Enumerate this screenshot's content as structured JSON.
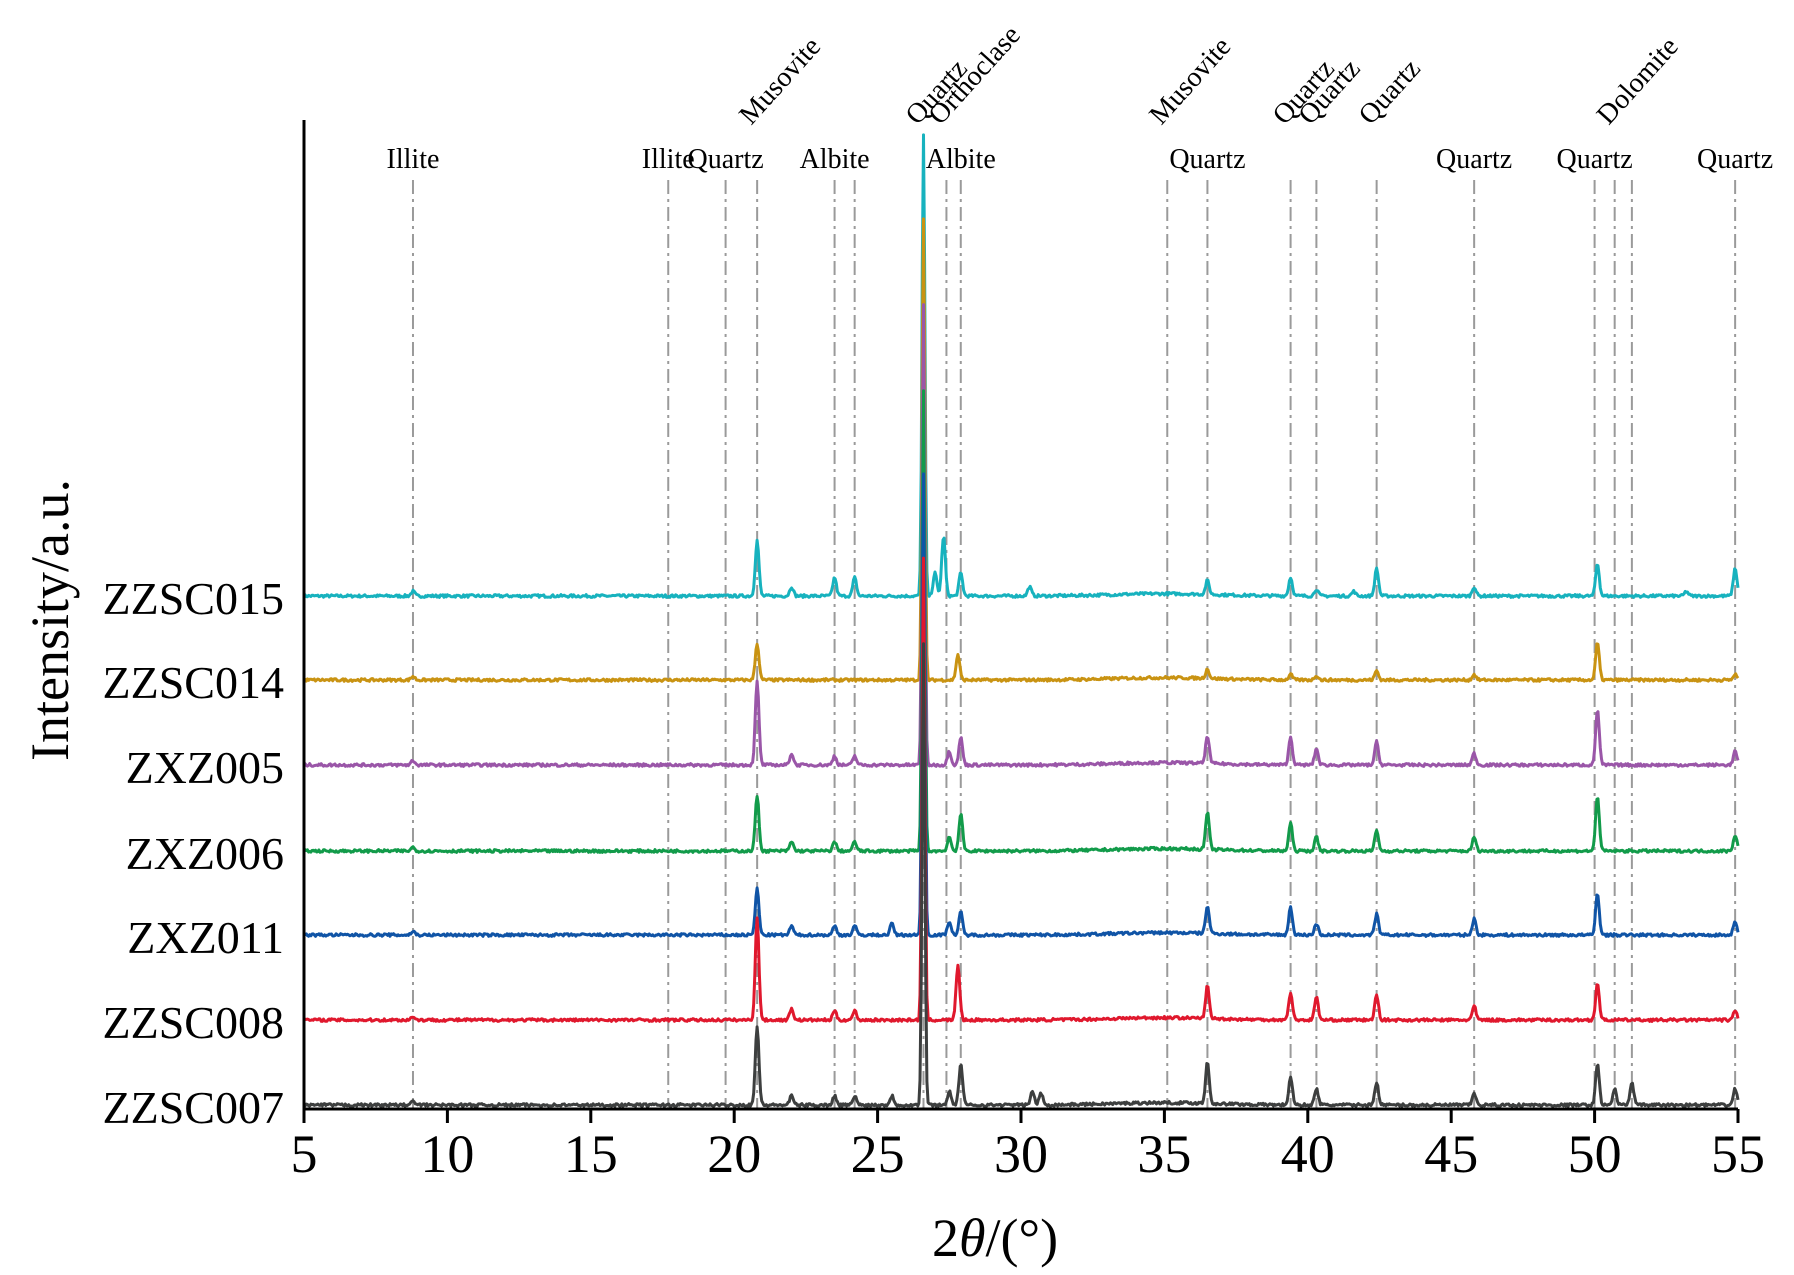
{
  "chart_data": {
    "type": "line",
    "xlabel": "2θ/(°)",
    "xlabel_parts": [
      "2",
      "θ",
      "/(°)"
    ],
    "ylabel": "Intensity/a.u.",
    "xlim": [
      5,
      55
    ],
    "xticks": [
      5,
      10,
      15,
      20,
      25,
      30,
      35,
      40,
      45,
      50,
      55
    ],
    "grid": false,
    "series": [
      {
        "name": "ZZSC015",
        "color": "#17b2be",
        "amp": 3.6,
        "peaks": [
          [
            8.8,
            0.01
          ],
          [
            20.8,
            0.12
          ],
          [
            22.0,
            0.02
          ],
          [
            23.5,
            0.04
          ],
          [
            24.2,
            0.04
          ],
          [
            26.6,
            1.0
          ],
          [
            27.0,
            0.05
          ],
          [
            27.3,
            0.13
          ],
          [
            27.9,
            0.05
          ],
          [
            30.3,
            0.02
          ],
          [
            36.5,
            0.03
          ],
          [
            39.4,
            0.04
          ],
          [
            40.3,
            0.015
          ],
          [
            41.6,
            0.01
          ],
          [
            42.4,
            0.06
          ],
          [
            45.8,
            0.02
          ],
          [
            50.1,
            0.07
          ],
          [
            53.2,
            0.01
          ],
          [
            54.9,
            0.06
          ]
        ]
      },
      {
        "name": "ZZSC014",
        "color": "#c99312",
        "amp": 3.6,
        "peaks": [
          [
            8.8,
            0.008
          ],
          [
            20.8,
            0.08
          ],
          [
            26.6,
            1.0
          ],
          [
            27.8,
            0.055
          ],
          [
            36.5,
            0.02
          ],
          [
            39.4,
            0.012
          ],
          [
            40.3,
            0.01
          ],
          [
            42.4,
            0.02
          ],
          [
            45.8,
            0.012
          ],
          [
            50.1,
            0.08
          ],
          [
            54.9,
            0.012
          ]
        ]
      },
      {
        "name": "ZXZ005",
        "color": "#9a56a8",
        "amp": 3.6,
        "peaks": [
          [
            8.8,
            0.01
          ],
          [
            20.8,
            0.18
          ],
          [
            22.0,
            0.025
          ],
          [
            23.5,
            0.02
          ],
          [
            24.2,
            0.02
          ],
          [
            26.6,
            1.0
          ],
          [
            27.5,
            0.03
          ],
          [
            27.9,
            0.06
          ],
          [
            36.5,
            0.06
          ],
          [
            39.4,
            0.06
          ],
          [
            40.3,
            0.035
          ],
          [
            42.4,
            0.05
          ],
          [
            45.8,
            0.025
          ],
          [
            50.1,
            0.12
          ],
          [
            54.9,
            0.03
          ]
        ]
      },
      {
        "name": "ZXZ006",
        "color": "#129b4a",
        "amp": 3.6,
        "peaks": [
          [
            8.8,
            0.008
          ],
          [
            20.8,
            0.12
          ],
          [
            22.0,
            0.02
          ],
          [
            23.5,
            0.02
          ],
          [
            24.2,
            0.02
          ],
          [
            26.6,
            1.0
          ],
          [
            27.5,
            0.03
          ],
          [
            27.9,
            0.08
          ],
          [
            36.5,
            0.08
          ],
          [
            39.4,
            0.06
          ],
          [
            40.3,
            0.03
          ],
          [
            42.4,
            0.045
          ],
          [
            45.8,
            0.03
          ],
          [
            50.1,
            0.12
          ],
          [
            54.9,
            0.035
          ]
        ]
      },
      {
        "name": "ZXZ011",
        "color": "#1054a6",
        "amp": 3.6,
        "peaks": [
          [
            8.8,
            0.008
          ],
          [
            20.8,
            0.1
          ],
          [
            22.0,
            0.02
          ],
          [
            23.5,
            0.02
          ],
          [
            24.2,
            0.02
          ],
          [
            25.5,
            0.025
          ],
          [
            26.6,
            1.0
          ],
          [
            27.5,
            0.03
          ],
          [
            27.9,
            0.05
          ],
          [
            36.5,
            0.06
          ],
          [
            39.4,
            0.06
          ],
          [
            40.3,
            0.025
          ],
          [
            42.4,
            0.045
          ],
          [
            45.8,
            0.035
          ],
          [
            50.1,
            0.09
          ],
          [
            54.9,
            0.03
          ]
        ]
      },
      {
        "name": "ZZSC008",
        "color": "#e0182d",
        "amp": 3.6,
        "peaks": [
          [
            8.8,
            0.008
          ],
          [
            20.8,
            0.22
          ],
          [
            22.0,
            0.025
          ],
          [
            23.5,
            0.02
          ],
          [
            24.2,
            0.02
          ],
          [
            26.6,
            1.0
          ],
          [
            27.8,
            0.12
          ],
          [
            36.5,
            0.07
          ],
          [
            39.4,
            0.06
          ],
          [
            40.3,
            0.05
          ],
          [
            42.4,
            0.055
          ],
          [
            45.8,
            0.03
          ],
          [
            50.1,
            0.08
          ],
          [
            54.9,
            0.02
          ]
        ]
      },
      {
        "name": "ZZSC007",
        "color": "#3d3f3f",
        "amp": 3.6,
        "peaks": [
          [
            8.8,
            0.008
          ],
          [
            20.8,
            0.17
          ],
          [
            22.0,
            0.02
          ],
          [
            23.5,
            0.02
          ],
          [
            24.2,
            0.02
          ],
          [
            25.5,
            0.02
          ],
          [
            26.6,
            1.0
          ],
          [
            27.5,
            0.03
          ],
          [
            27.9,
            0.09
          ],
          [
            30.4,
            0.03
          ],
          [
            30.7,
            0.025
          ],
          [
            36.5,
            0.09
          ],
          [
            39.4,
            0.06
          ],
          [
            40.3,
            0.035
          ],
          [
            42.4,
            0.05
          ],
          [
            45.8,
            0.025
          ],
          [
            50.1,
            0.09
          ],
          [
            50.7,
            0.035
          ],
          [
            51.3,
            0.05
          ],
          [
            54.9,
            0.035
          ]
        ]
      }
    ],
    "reference_lines": [
      {
        "x": 8.8,
        "label": "Illite",
        "rotated": false
      },
      {
        "x": 17.7,
        "label": "Illite",
        "rotated": false
      },
      {
        "x": 19.7,
        "label": "Quartz",
        "rotated": false
      },
      {
        "x": 20.8,
        "label": "Musovite",
        "rotated": true
      },
      {
        "x": 23.5,
        "label": "Albite",
        "rotated": false
      },
      {
        "x": 24.2,
        "label": "",
        "rotated": false
      },
      {
        "x": 26.6,
        "label": "Quartz",
        "rotated": true
      },
      {
        "x": 27.4,
        "label": "Orthoclase",
        "rotated": true
      },
      {
        "x": 27.9,
        "label": "Albite",
        "rotated": false
      },
      {
        "x": 35.1,
        "label": "Musovite",
        "rotated": true
      },
      {
        "x": 36.5,
        "label": "Quartz",
        "rotated": false
      },
      {
        "x": 39.4,
        "label": "Quartz",
        "rotated": true
      },
      {
        "x": 40.3,
        "label": "Quartz",
        "rotated": true
      },
      {
        "x": 42.4,
        "label": "Quartz",
        "rotated": true
      },
      {
        "x": 45.8,
        "label": "Quartz",
        "rotated": false
      },
      {
        "x": 50.0,
        "label": "Quartz",
        "rotated": false
      },
      {
        "x": 50.7,
        "label": "Dolomite",
        "rotated": true
      },
      {
        "x": 51.3,
        "label": "",
        "rotated": false
      },
      {
        "x": 54.9,
        "label": "Quartz",
        "rotated": false
      }
    ]
  }
}
